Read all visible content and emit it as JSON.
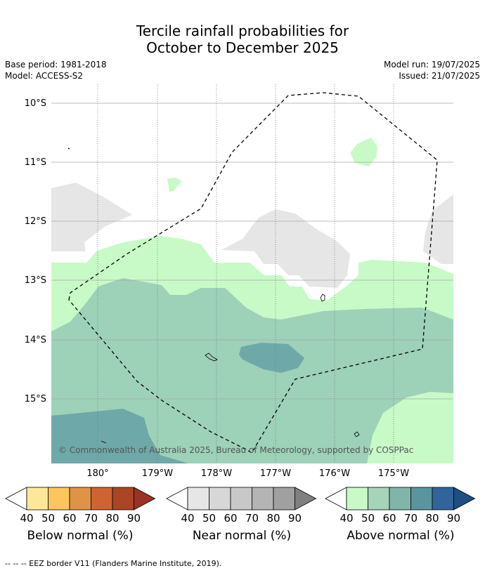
{
  "title": {
    "line1": "Tercile rainfall probabilities for",
    "line2": "October to December 2025"
  },
  "meta": {
    "base_period": "Base period: 1981-2018",
    "model": "Model: ACCESS-S2",
    "model_run": "Model run: 19/07/2025",
    "issued": "Issued: 21/07/2025"
  },
  "map": {
    "lat_labels": [
      "10°S",
      "11°S",
      "12°S",
      "13°S",
      "14°S",
      "15°S"
    ],
    "lon_labels": [
      "180°",
      "179°W",
      "178°W",
      "177°W",
      "176°W",
      "175°W"
    ],
    "copyright": "© Commonwealth of Australia 2025, Bureau of Meteorology, supported by COSPPac",
    "colors": {
      "above_50": "#c8fac8",
      "above_60": "#9dd1b8",
      "above_70": "#6fa8a8",
      "near_40": "#e6e6e6",
      "eez_line": "#000000"
    }
  },
  "legends": [
    {
      "title": "Below normal (%)",
      "ticks": [
        "40",
        "50",
        "60",
        "70",
        "80",
        "90"
      ],
      "colors": [
        "#ffffff",
        "#fde89a",
        "#fcc55e",
        "#e09247",
        "#cf6432",
        "#aa4526",
        "#9a3322"
      ]
    },
    {
      "title": "Near normal (%)",
      "ticks": [
        "40",
        "50",
        "60",
        "70",
        "80",
        "90"
      ],
      "colors": [
        "#ffffff",
        "#e6e6e6",
        "#d7d7d7",
        "#c8c8c8",
        "#b4b4b4",
        "#a0a0a0",
        "#808080"
      ]
    },
    {
      "title": "Above normal (%)",
      "ticks": [
        "40",
        "50",
        "60",
        "70",
        "80",
        "90"
      ],
      "colors": [
        "#ffffff",
        "#c8fac8",
        "#a5d4b9",
        "#82b5a9",
        "#5a949f",
        "#31649a",
        "#1d4f82"
      ]
    }
  ],
  "footnote": "--  --  -- EEZ border V11 (Flanders Marine Institute, 2019)."
}
